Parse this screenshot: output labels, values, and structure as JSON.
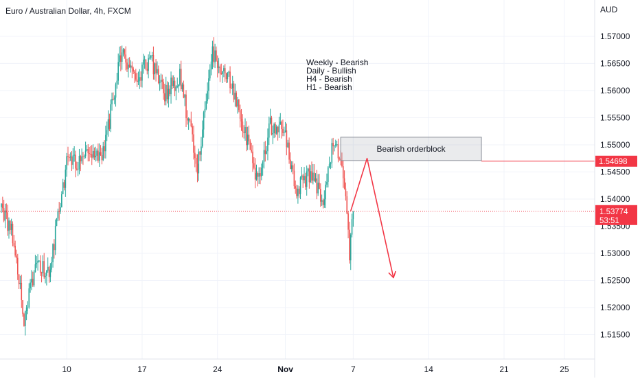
{
  "chart_data": {
    "type": "candlestick",
    "title": "Euro / Australian Dollar, 4h, FXCM",
    "currency": "AUD",
    "y_ticks": [
      "1.57000",
      "1.56500",
      "1.56000",
      "1.55500",
      "1.55000",
      "1.54500",
      "1.54000",
      "1.53500",
      "1.53000",
      "1.52500",
      "1.52000",
      "1.51500"
    ],
    "y_tick_values": [
      1.57,
      1.565,
      1.56,
      1.555,
      1.55,
      1.545,
      1.54,
      1.535,
      1.53,
      1.525,
      1.52,
      1.515
    ],
    "ylim": [
      1.5105,
      1.5767
    ],
    "x_labels": [
      {
        "text": "10",
        "bar": 52
      },
      {
        "text": "17",
        "bar": 112
      },
      {
        "text": "24",
        "bar": 172
      },
      {
        "text": "Nov",
        "bar": 226,
        "bold": true
      },
      {
        "text": "7",
        "bar": 280
      },
      {
        "text": "14",
        "bar": 340
      },
      {
        "text": "21",
        "bar": 400
      },
      {
        "text": "25",
        "bar": 448
      }
    ],
    "bar_count": 276,
    "grid": true,
    "colors": {
      "up": "#26a69a",
      "down": "#ef5350",
      "grid": "#f0f3fa",
      "annotation": "#f23645"
    },
    "bias_notes": [
      "Weekly - Bearish",
      "Daily - Bullish",
      "H4 - Bearish",
      "H1 - Bearish"
    ],
    "orderblock": {
      "label": "Bearish orderblock",
      "top": 1.5514,
      "bottom": 1.5471,
      "start_bar": 270,
      "end_bar": 382
    },
    "resistance_level": {
      "value": 1.54698,
      "label": "1.54698",
      "start_bar": 382
    },
    "current_price": {
      "value": 1.53774,
      "label": "1.53774",
      "countdown": "53:51"
    },
    "projection_path": [
      {
        "bar": 278,
        "price": 1.5378
      },
      {
        "bar": 291,
        "price": 1.5475
      },
      {
        "bar": 312,
        "price": 1.5255
      }
    ],
    "anchors": [
      {
        "bar": 0,
        "price": 1.5385
      },
      {
        "bar": 9,
        "price": 1.5335
      },
      {
        "bar": 18,
        "price": 1.518
      },
      {
        "bar": 28,
        "price": 1.528
      },
      {
        "bar": 38,
        "price": 1.5265
      },
      {
        "bar": 52,
        "price": 1.5465
      },
      {
        "bar": 66,
        "price": 1.5475
      },
      {
        "bar": 82,
        "price": 1.549
      },
      {
        "bar": 96,
        "price": 1.568
      },
      {
        "bar": 106,
        "price": 1.5615
      },
      {
        "bar": 118,
        "price": 1.566
      },
      {
        "bar": 130,
        "price": 1.5595
      },
      {
        "bar": 142,
        "price": 1.5625
      },
      {
        "bar": 156,
        "price": 1.546
      },
      {
        "bar": 168,
        "price": 1.5665
      },
      {
        "bar": 182,
        "price": 1.5615
      },
      {
        "bar": 196,
        "price": 1.5505
      },
      {
        "bar": 204,
        "price": 1.5425
      },
      {
        "bar": 214,
        "price": 1.5535
      },
      {
        "bar": 226,
        "price": 1.5525
      },
      {
        "bar": 234,
        "price": 1.5415
      },
      {
        "bar": 246,
        "price": 1.545
      },
      {
        "bar": 256,
        "price": 1.5395
      },
      {
        "bar": 264,
        "price": 1.5505
      },
      {
        "bar": 270,
        "price": 1.5472
      },
      {
        "bar": 275,
        "price": 1.5375
      },
      {
        "bar": 277,
        "price": 1.529
      },
      {
        "bar": 280,
        "price": 1.5378
      }
    ]
  }
}
